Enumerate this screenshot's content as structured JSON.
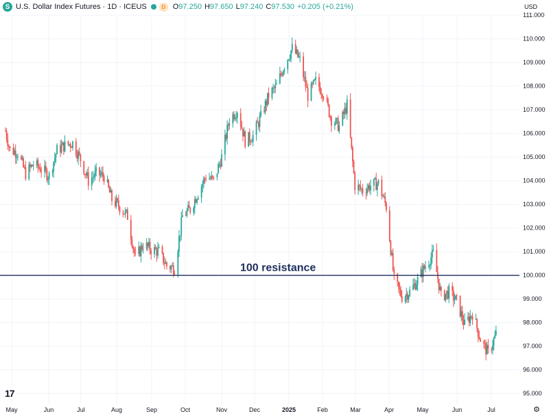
{
  "header": {
    "symbol_icon": "S",
    "title": "U.S. Dollar Index Futures · 1D · ICEUS",
    "badge": "D",
    "open_label": "O",
    "open": "97.250",
    "high_label": "H",
    "high": "97.650",
    "low_label": "L",
    "low": "97.240",
    "close_label": "C",
    "close": "97.530",
    "change": "+0.205 (+0.21%)"
  },
  "currency": "USD",
  "logo": "17",
  "colors": {
    "up": "#26a69a",
    "down": "#ef5350",
    "line": "#1e2f5e",
    "grid": "#f0f3fa",
    "text": "#131722"
  },
  "chart_data": {
    "type": "candlestick",
    "title": "U.S. Dollar Index Futures · 1D · ICEUS",
    "ylim": [
      94.5,
      111.5
    ],
    "y_ticks": [
      "111.000",
      "110.000",
      "109.000",
      "108.000",
      "107.000",
      "106.000",
      "105.000",
      "104.000",
      "103.000",
      "102.000",
      "101.000",
      "100.000",
      "99.000",
      "98.000",
      "97.000",
      "96.000",
      "95.000"
    ],
    "x_ticks": [
      "May",
      "Jun",
      "Jul",
      "Aug",
      "Sep",
      "Oct",
      "Nov",
      "Dec",
      "2025",
      "Feb",
      "Mar",
      "Apr",
      "May",
      "Jun",
      "Jul"
    ],
    "annotation": {
      "label": "100 resistance",
      "value": 100.0
    },
    "last_close": 97.53,
    "path": [
      [
        "2024-04-29",
        106.1
      ],
      [
        "2024-05-03",
        105.3
      ],
      [
        "2024-05-10",
        105.2
      ],
      [
        "2024-05-17",
        104.3
      ],
      [
        "2024-05-24",
        104.7
      ],
      [
        "2024-05-31",
        104.5
      ],
      [
        "2024-06-07",
        104.2
      ],
      [
        "2024-06-14",
        105.3
      ],
      [
        "2024-06-21",
        105.5
      ],
      [
        "2024-06-28",
        105.6
      ],
      [
        "2024-07-05",
        104.9
      ],
      [
        "2024-07-12",
        104.0
      ],
      [
        "2024-07-19",
        104.3
      ],
      [
        "2024-07-26",
        104.2
      ],
      [
        "2024-08-02",
        103.2
      ],
      [
        "2024-08-09",
        102.9
      ],
      [
        "2024-08-16",
        102.5
      ],
      [
        "2024-08-23",
        100.7
      ],
      [
        "2024-08-30",
        101.3
      ],
      [
        "2024-09-06",
        101.1
      ],
      [
        "2024-09-13",
        101.0
      ],
      [
        "2024-09-20",
        100.4
      ],
      [
        "2024-09-27",
        100.3
      ],
      [
        "2024-10-04",
        102.5
      ],
      [
        "2024-10-11",
        102.8
      ],
      [
        "2024-10-18",
        103.5
      ],
      [
        "2024-10-25",
        104.2
      ],
      [
        "2024-11-01",
        104.0
      ],
      [
        "2024-11-08",
        105.0
      ],
      [
        "2024-11-15",
        106.6
      ],
      [
        "2024-11-22",
        107.0
      ],
      [
        "2024-11-29",
        105.7
      ],
      [
        "2024-12-06",
        105.9
      ],
      [
        "2024-12-13",
        106.7
      ],
      [
        "2024-12-20",
        107.6
      ],
      [
        "2024-12-27",
        108.0
      ],
      [
        "2025-01-03",
        108.9
      ],
      [
        "2025-01-10",
        109.6
      ],
      [
        "2025-01-17",
        109.1
      ],
      [
        "2025-01-24",
        107.6
      ],
      [
        "2025-01-31",
        108.2
      ],
      [
        "2025-02-07",
        107.7
      ],
      [
        "2025-02-14",
        106.6
      ],
      [
        "2025-02-21",
        106.3
      ],
      [
        "2025-02-28",
        107.2
      ],
      [
        "2025-03-07",
        103.8
      ],
      [
        "2025-03-14",
        103.6
      ],
      [
        "2025-03-21",
        103.8
      ],
      [
        "2025-03-28",
        103.9
      ],
      [
        "2025-04-04",
        102.9
      ],
      [
        "2025-04-11",
        99.8
      ],
      [
        "2025-04-18",
        99.1
      ],
      [
        "2025-04-25",
        99.3
      ],
      [
        "2025-05-02",
        99.8
      ],
      [
        "2025-05-09",
        100.4
      ],
      [
        "2025-05-16",
        100.9
      ],
      [
        "2025-05-23",
        99.1
      ],
      [
        "2025-05-30",
        99.3
      ],
      [
        "2025-06-06",
        98.9
      ],
      [
        "2025-06-13",
        97.9
      ],
      [
        "2025-06-20",
        98.4
      ],
      [
        "2025-06-27",
        97.3
      ],
      [
        "2025-07-04",
        96.7
      ],
      [
        "2025-07-11",
        97.5
      ]
    ]
  }
}
